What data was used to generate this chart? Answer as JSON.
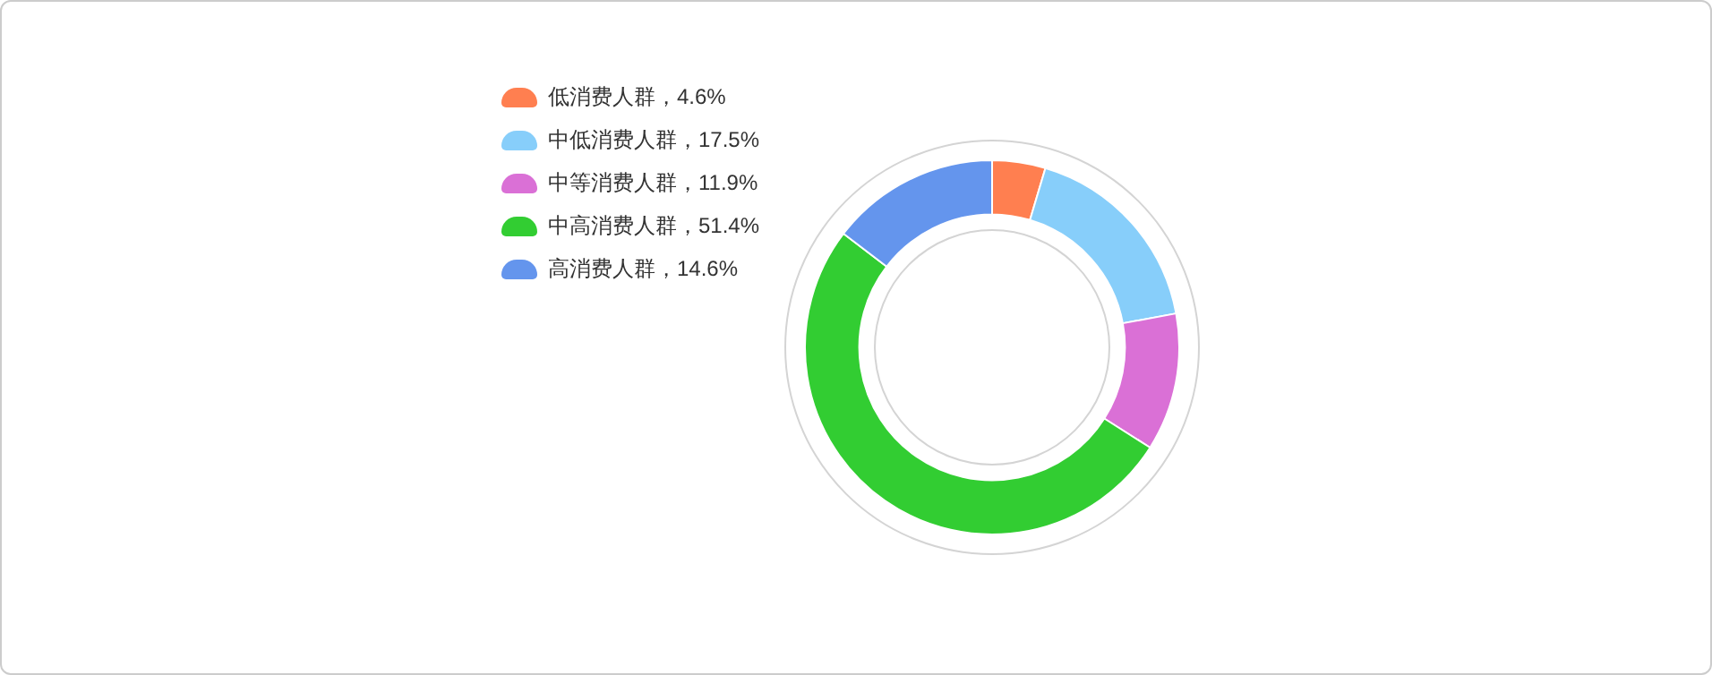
{
  "chart_data": {
    "type": "donut",
    "categories": [
      "低消费人群，4.6%",
      "中低消费人群，17.5%",
      "中等消费人群，11.9%",
      "中高消费人群，51.4%",
      "高消费人群，14.6%"
    ],
    "values": [
      4.6,
      17.5,
      11.9,
      51.4,
      14.6
    ],
    "colors": [
      "#ff7f50",
      "#87cefa",
      "#da70d6",
      "#32cd32",
      "#6495ed"
    ],
    "legend": "top left"
  }
}
